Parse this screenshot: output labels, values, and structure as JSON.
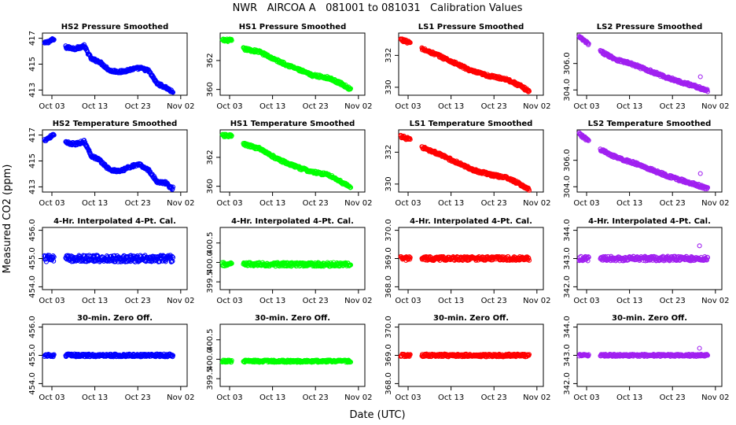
{
  "chart_data": {
    "type": "scatter",
    "title": "NWR   AIRCOA A   081001 to 081031   Calibration Values",
    "xlabel": "Date (UTC)",
    "ylabel": "Measured CO2 (ppm)",
    "x_ticks": [
      "Oct 03",
      "Oct 13",
      "Oct 23",
      "Nov 02"
    ],
    "x_tick_days": [
      3,
      13,
      23,
      33
    ],
    "xlim": [
      0.8,
      34.5
    ],
    "colors": {
      "HS2": "#0000ff",
      "HS1": "#00ff00",
      "LS1": "#ff0000",
      "LS2": "#a020f0"
    },
    "panels": [
      {
        "title": "HS2 Pressure Smoothed",
        "color": "#0000ff",
        "ylim": [
          412.6,
          417.4
        ],
        "yticks": [
          "413",
          "415",
          "417"
        ],
        "ytick_values": [
          413,
          415,
          417
        ],
        "trend": [
          [
            1.3,
            416.6
          ],
          [
            3.3,
            416.9
          ],
          [
            6.3,
            416.3
          ],
          [
            8.5,
            416.2
          ],
          [
            10.5,
            416.4
          ],
          [
            12.2,
            415.4
          ],
          [
            14.0,
            415.2
          ],
          [
            16.5,
            414.5
          ],
          [
            19.0,
            414.4
          ],
          [
            21.5,
            414.6
          ],
          [
            23.5,
            414.7
          ],
          [
            25.5,
            414.5
          ],
          [
            27.5,
            413.5
          ],
          [
            29.5,
            413.2
          ],
          [
            30.8,
            412.9
          ]
        ]
      },
      {
        "title": "HS1 Pressure Smoothed",
        "color": "#00ff00",
        "ylim": [
          359.6,
          363.9
        ],
        "yticks": [
          "360",
          "362"
        ],
        "ytick_values": [
          360,
          362
        ],
        "trend": [
          [
            1.3,
            363.4
          ],
          [
            3.3,
            363.4
          ],
          [
            6.3,
            362.8
          ],
          [
            10.0,
            362.6
          ],
          [
            14.0,
            362.0
          ],
          [
            18.0,
            361.5
          ],
          [
            22.0,
            361.0
          ],
          [
            26.0,
            360.8
          ],
          [
            29.0,
            360.4
          ],
          [
            31.2,
            360.0
          ]
        ]
      },
      {
        "title": "LS1 Pressure Smoothed",
        "color": "#ff0000",
        "ylim": [
          329.5,
          333.4
        ],
        "yticks": [
          "330",
          "332"
        ],
        "ytick_values": [
          330,
          332
        ],
        "trend": [
          [
            1.3,
            333.0
          ],
          [
            3.3,
            332.8
          ],
          [
            6.3,
            332.4
          ],
          [
            10.0,
            332.0
          ],
          [
            14.0,
            331.5
          ],
          [
            18.0,
            331.0
          ],
          [
            22.0,
            330.7
          ],
          [
            26.0,
            330.5
          ],
          [
            29.0,
            330.1
          ],
          [
            31.5,
            329.7
          ]
        ]
      },
      {
        "title": "LS2 Pressure Smoothed",
        "color": "#a020f0",
        "ylim": [
          303.6,
          308.3
        ],
        "yticks": [
          "304.0",
          "306.0"
        ],
        "ytick_values": [
          304,
          306
        ],
        "trend": [
          [
            1.3,
            308.0
          ],
          [
            3.3,
            307.5
          ],
          [
            6.3,
            306.9
          ],
          [
            10.0,
            306.3
          ],
          [
            14.0,
            305.9
          ],
          [
            18.0,
            305.4
          ],
          [
            22.0,
            304.9
          ],
          [
            26.0,
            304.5
          ],
          [
            29.0,
            304.2
          ],
          [
            31.5,
            303.9
          ]
        ],
        "outliers": [
          [
            29.5,
            305.0
          ]
        ]
      },
      {
        "title": "HS2 Temperature Smoothed",
        "color": "#0000ff",
        "ylim": [
          412.6,
          417.4
        ],
        "yticks": [
          "413",
          "415",
          "417"
        ],
        "ytick_values": [
          413,
          415,
          417
        ],
        "trend": [
          [
            1.3,
            416.6
          ],
          [
            3.3,
            417.0
          ],
          [
            6.3,
            416.4
          ],
          [
            8.5,
            416.3
          ],
          [
            10.5,
            416.5
          ],
          [
            12.2,
            415.4
          ],
          [
            14.0,
            415.1
          ],
          [
            16.5,
            414.3
          ],
          [
            19.0,
            414.2
          ],
          [
            21.5,
            414.6
          ],
          [
            23.5,
            414.7
          ],
          [
            25.5,
            414.3
          ],
          [
            27.5,
            413.4
          ],
          [
            29.5,
            413.3
          ],
          [
            30.8,
            412.9
          ]
        ]
      },
      {
        "title": "HS1 Temperature Smoothed",
        "color": "#00ff00",
        "ylim": [
          359.6,
          363.9
        ],
        "yticks": [
          "360",
          "362"
        ],
        "ytick_values": [
          360,
          362
        ],
        "trend": [
          [
            1.3,
            363.5
          ],
          [
            3.3,
            363.5
          ],
          [
            6.3,
            362.9
          ],
          [
            10.0,
            362.6
          ],
          [
            14.0,
            361.9
          ],
          [
            18.0,
            361.4
          ],
          [
            22.0,
            361.0
          ],
          [
            26.0,
            360.8
          ],
          [
            29.0,
            360.3
          ],
          [
            31.2,
            359.9
          ]
        ]
      },
      {
        "title": "LS1 Temperature Smoothed",
        "color": "#ff0000",
        "ylim": [
          329.5,
          333.4
        ],
        "yticks": [
          "330",
          "332"
        ],
        "ytick_values": [
          330,
          332
        ],
        "trend": [
          [
            1.3,
            333.0
          ],
          [
            3.3,
            332.8
          ],
          [
            6.3,
            332.3
          ],
          [
            10.0,
            331.9
          ],
          [
            14.0,
            331.4
          ],
          [
            18.0,
            330.9
          ],
          [
            22.0,
            330.6
          ],
          [
            26.0,
            330.4
          ],
          [
            29.0,
            330.0
          ],
          [
            31.5,
            329.6
          ]
        ]
      },
      {
        "title": "LS2 Temperature Smoothed",
        "color": "#a020f0",
        "ylim": [
          303.6,
          308.3
        ],
        "yticks": [
          "304.0",
          "306.0"
        ],
        "ytick_values": [
          304,
          306
        ],
        "trend": [
          [
            1.3,
            308.0
          ],
          [
            3.3,
            307.5
          ],
          [
            6.3,
            306.8
          ],
          [
            10.0,
            306.2
          ],
          [
            14.0,
            305.8
          ],
          [
            18.0,
            305.3
          ],
          [
            22.0,
            304.8
          ],
          [
            26.0,
            304.4
          ],
          [
            29.0,
            304.1
          ],
          [
            31.5,
            303.8
          ]
        ],
        "outliers": [
          [
            29.5,
            305.0
          ]
        ]
      },
      {
        "title": "4-Hr. Interpolated 4-Pt. Cal.",
        "color": "#0000ff",
        "ylim": [
          453.9,
          456.1
        ],
        "yticks": [
          "454.0",
          "455.0",
          "456.0"
        ],
        "ytick_values": [
          454,
          455,
          456
        ],
        "level": 455.0,
        "spread": 0.12
      },
      {
        "title": "4-Hr. Interpolated 4-Pt. Cal.",
        "color": "#00ff00",
        "ylim": [
          399.3,
          400.9
        ],
        "yticks": [
          "399.5",
          "400.0",
          "400.5"
        ],
        "ytick_values": [
          399.5,
          400.0,
          400.5
        ],
        "level": 399.95,
        "spread": 0.05
      },
      {
        "title": "4-Hr. Interpolated 4-Pt. Cal.",
        "color": "#ff0000",
        "ylim": [
          367.9,
          370.1
        ],
        "yticks": [
          "368.0",
          "369.0",
          "370.0"
        ],
        "ytick_values": [
          368,
          369,
          370
        ],
        "level": 369.0,
        "spread": 0.07
      },
      {
        "title": "4-Hr. Interpolated 4-Pt. Cal.",
        "color": "#a020f0",
        "ylim": [
          341.9,
          344.1
        ],
        "yticks": [
          "342.0",
          "343.0",
          "344.0"
        ],
        "ytick_values": [
          342,
          343,
          344
        ],
        "level": 343.0,
        "spread": 0.08,
        "outliers": [
          [
            29.3,
            343.45
          ]
        ]
      },
      {
        "title": "30-min. Zero Off.",
        "color": "#0000ff",
        "ylim": [
          453.9,
          456.1
        ],
        "yticks": [
          "454.0",
          "455.0",
          "456.0"
        ],
        "ytick_values": [
          454,
          455,
          456
        ],
        "level": 455.0,
        "spread": 0.05
      },
      {
        "title": "30-min. Zero Off.",
        "color": "#00ff00",
        "ylim": [
          399.3,
          400.9
        ],
        "yticks": [
          "399.5",
          "400.0",
          "400.5"
        ],
        "ytick_values": [
          399.5,
          400.0,
          400.5
        ],
        "level": 399.95,
        "spread": 0.03
      },
      {
        "title": "30-min. Zero Off.",
        "color": "#ff0000",
        "ylim": [
          367.9,
          370.1
        ],
        "yticks": [
          "368.0",
          "369.0",
          "370.0"
        ],
        "ytick_values": [
          368,
          369,
          370
        ],
        "level": 369.0,
        "spread": 0.05
      },
      {
        "title": "30-min. Zero Off.",
        "color": "#a020f0",
        "ylim": [
          341.9,
          344.1
        ],
        "yticks": [
          "342.0",
          "343.0",
          "344.0"
        ],
        "ytick_values": [
          342,
          343,
          344
        ],
        "level": 343.0,
        "spread": 0.04,
        "outliers": [
          [
            29.3,
            343.25
          ]
        ]
      }
    ]
  }
}
